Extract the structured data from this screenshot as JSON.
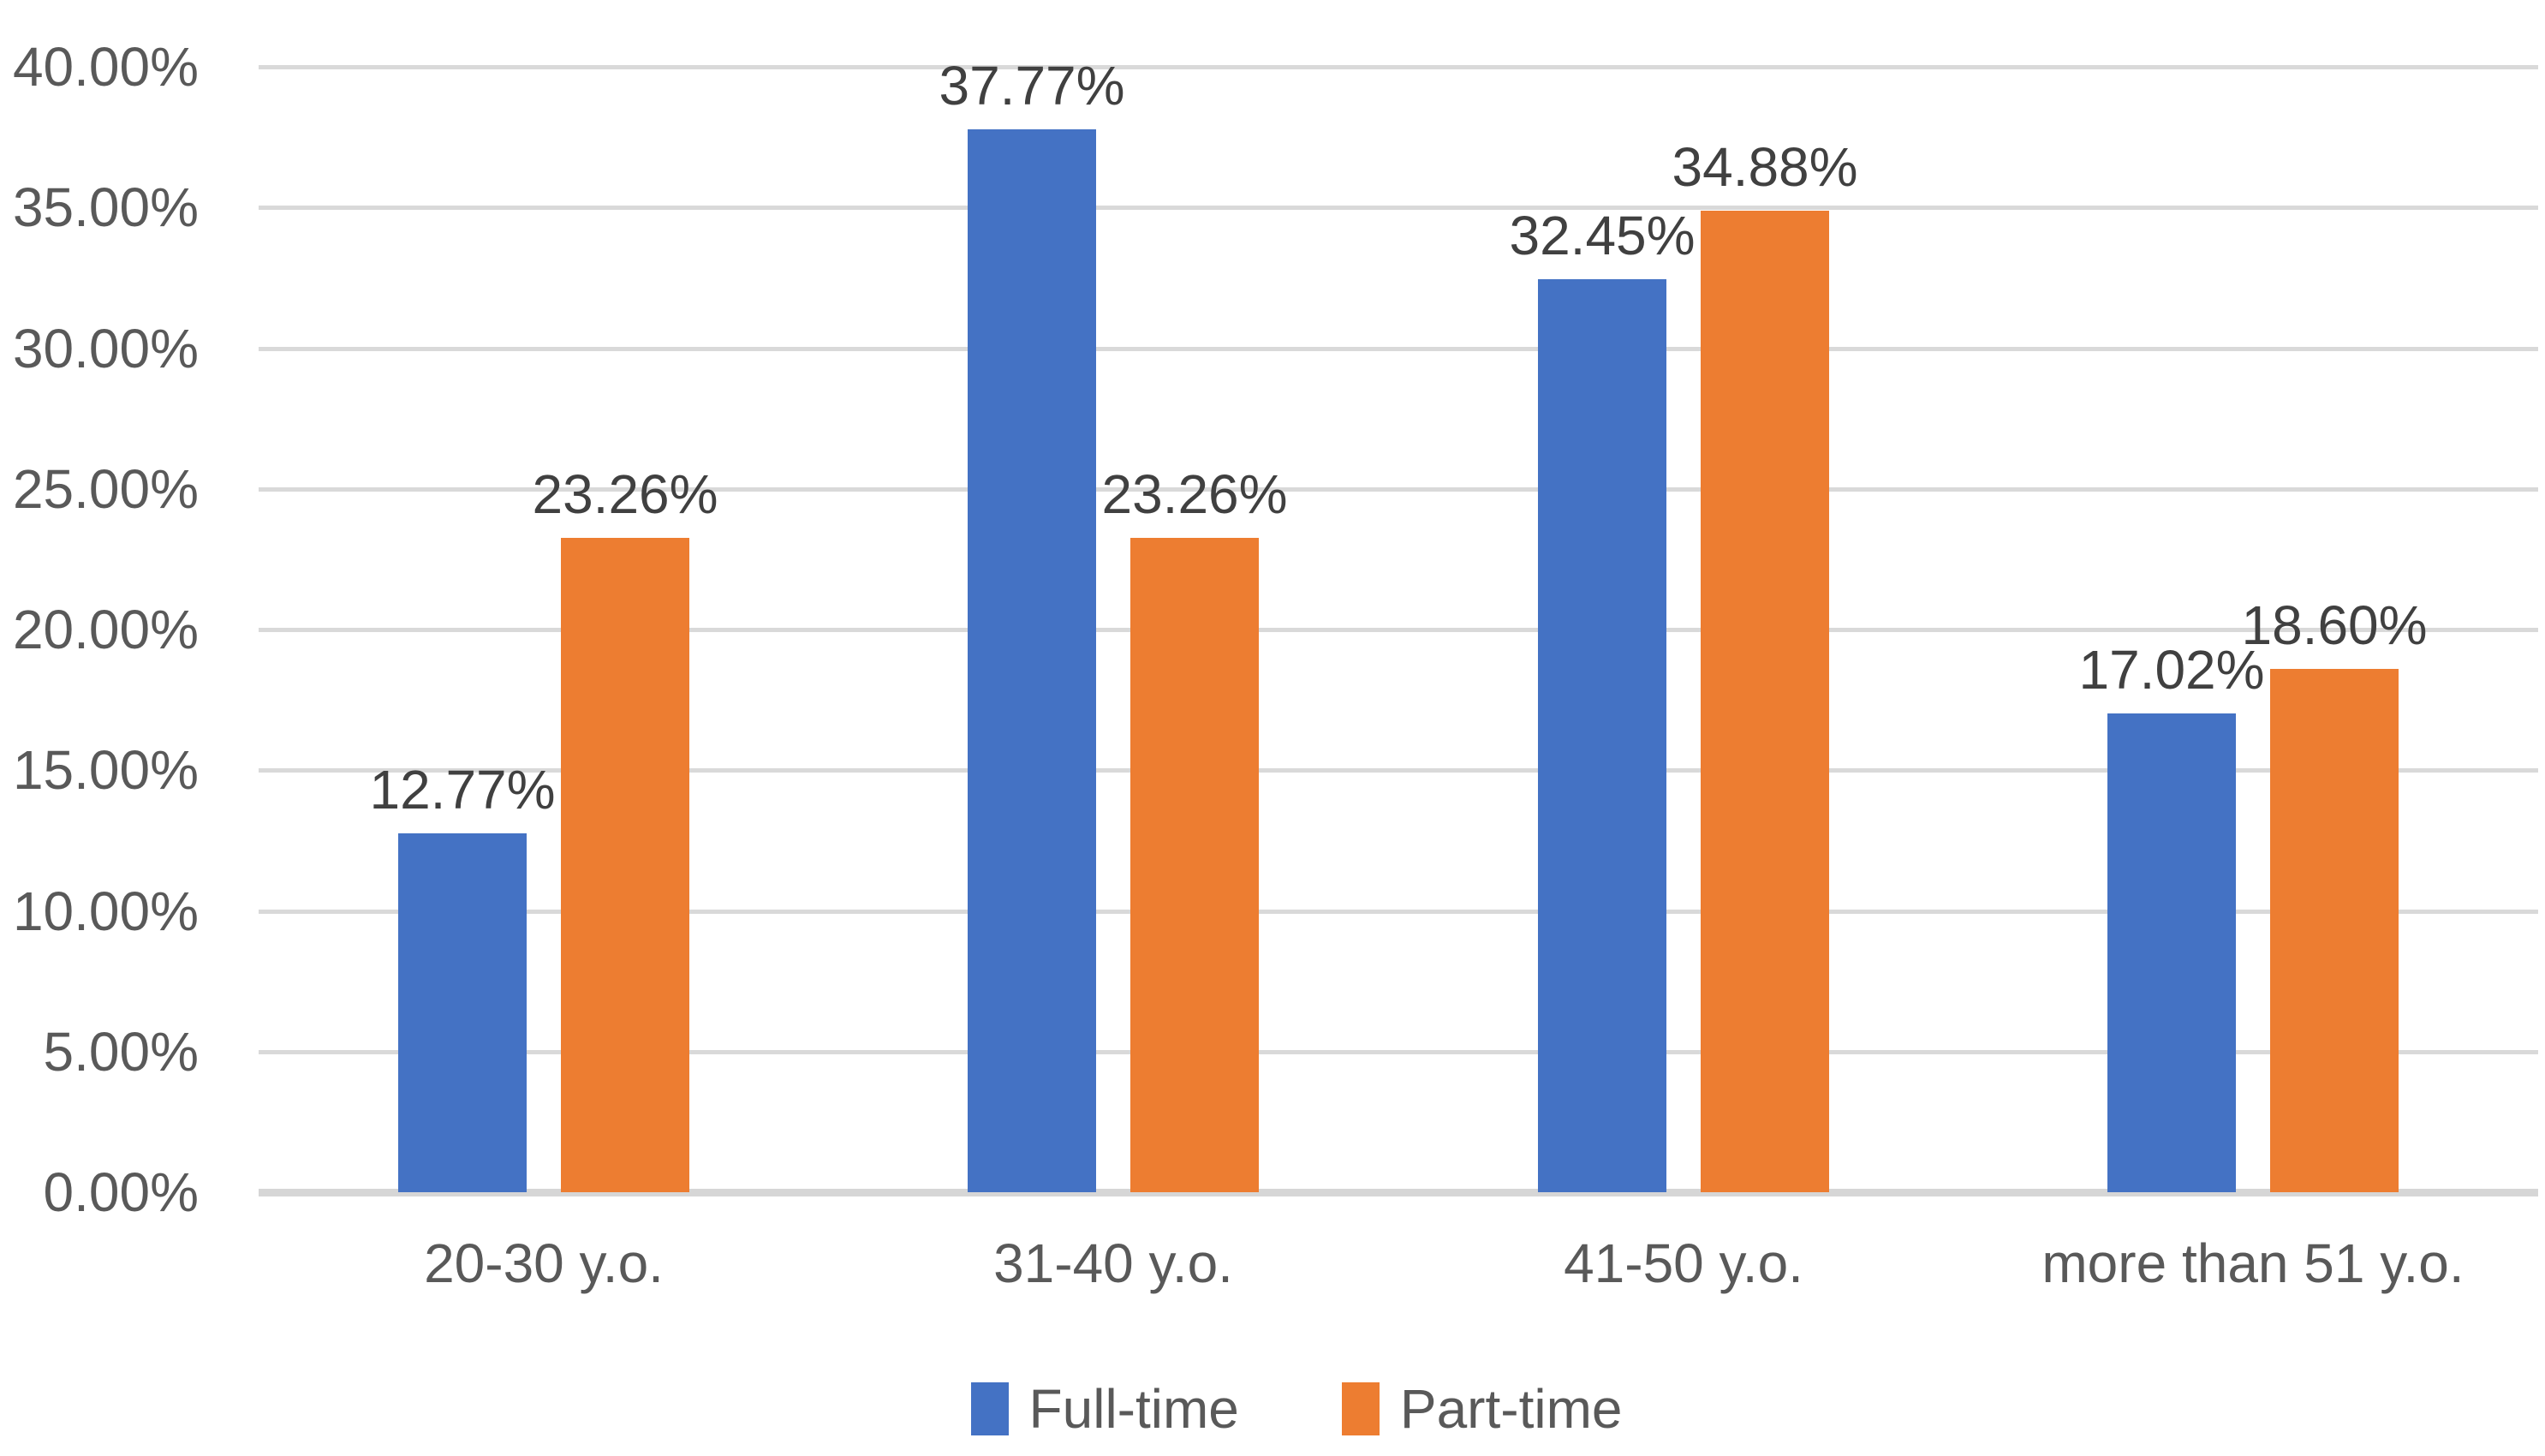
{
  "chart_data": {
    "type": "bar",
    "title": "",
    "xlabel": "",
    "ylabel": "",
    "categories": [
      "20-30 y.o.",
      "31-40 y.o.",
      "41-50 y.o.",
      "more than 51 y.o."
    ],
    "series": [
      {
        "name": "Full-time",
        "color": "#4472C4",
        "values": [
          12.77,
          37.77,
          32.45,
          17.02
        ],
        "labels": [
          "12.77%",
          "37.77%",
          "32.45%",
          "17.02%"
        ]
      },
      {
        "name": "Part-time",
        "color": "#ED7D31",
        "values": [
          23.26,
          23.26,
          34.88,
          18.6
        ],
        "labels": [
          "23.26%",
          "23.26%",
          "34.88%",
          "18.60%"
        ]
      }
    ],
    "y_axis": {
      "min": 0,
      "max": 40,
      "step": 5,
      "tick_labels": [
        "0.00%",
        "5.00%",
        "10.00%",
        "15.00%",
        "20.00%",
        "25.00%",
        "30.00%",
        "35.00%",
        "40.00%"
      ]
    },
    "legend_position": "bottom-center",
    "grid": true,
    "gridline_color": "#D9D9D9",
    "axis_line_color": "#D6D6D6",
    "data_label_color": "#404040",
    "axis_text_color": "#595959",
    "background": "#FFFFFF"
  }
}
